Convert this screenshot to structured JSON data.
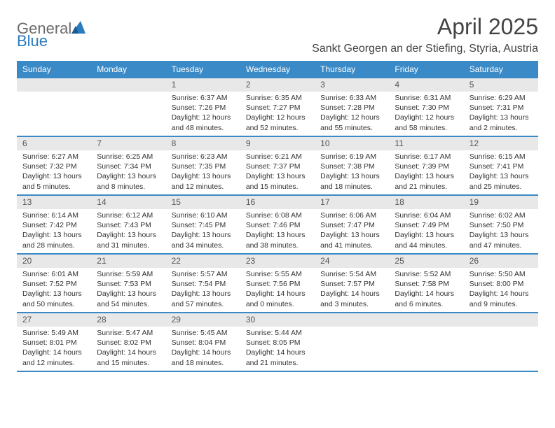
{
  "logo": {
    "text_general": "General",
    "text_blue": "Blue",
    "triangle_color": "#2b7bbf",
    "text_color_gray": "#6b6b6b"
  },
  "header": {
    "month_title": "April 2025",
    "location": "Sankt Georgen an der Stiefing, Styria, Austria"
  },
  "colors": {
    "header_bar": "#3a8ac7",
    "daynum_bg": "#e8e8e8",
    "row_divider": "#3a8ac7",
    "background": "#ffffff",
    "text": "#333333",
    "title_text": "#444444"
  },
  "weekdays": [
    "Sunday",
    "Monday",
    "Tuesday",
    "Wednesday",
    "Thursday",
    "Friday",
    "Saturday"
  ],
  "weeks": [
    [
      null,
      null,
      {
        "num": "1",
        "sunrise": "Sunrise: 6:37 AM",
        "sunset": "Sunset: 7:26 PM",
        "day1": "Daylight: 12 hours",
        "day2": "and 48 minutes."
      },
      {
        "num": "2",
        "sunrise": "Sunrise: 6:35 AM",
        "sunset": "Sunset: 7:27 PM",
        "day1": "Daylight: 12 hours",
        "day2": "and 52 minutes."
      },
      {
        "num": "3",
        "sunrise": "Sunrise: 6:33 AM",
        "sunset": "Sunset: 7:28 PM",
        "day1": "Daylight: 12 hours",
        "day2": "and 55 minutes."
      },
      {
        "num": "4",
        "sunrise": "Sunrise: 6:31 AM",
        "sunset": "Sunset: 7:30 PM",
        "day1": "Daylight: 12 hours",
        "day2": "and 58 minutes."
      },
      {
        "num": "5",
        "sunrise": "Sunrise: 6:29 AM",
        "sunset": "Sunset: 7:31 PM",
        "day1": "Daylight: 13 hours",
        "day2": "and 2 minutes."
      }
    ],
    [
      {
        "num": "6",
        "sunrise": "Sunrise: 6:27 AM",
        "sunset": "Sunset: 7:32 PM",
        "day1": "Daylight: 13 hours",
        "day2": "and 5 minutes."
      },
      {
        "num": "7",
        "sunrise": "Sunrise: 6:25 AM",
        "sunset": "Sunset: 7:34 PM",
        "day1": "Daylight: 13 hours",
        "day2": "and 8 minutes."
      },
      {
        "num": "8",
        "sunrise": "Sunrise: 6:23 AM",
        "sunset": "Sunset: 7:35 PM",
        "day1": "Daylight: 13 hours",
        "day2": "and 12 minutes."
      },
      {
        "num": "9",
        "sunrise": "Sunrise: 6:21 AM",
        "sunset": "Sunset: 7:37 PM",
        "day1": "Daylight: 13 hours",
        "day2": "and 15 minutes."
      },
      {
        "num": "10",
        "sunrise": "Sunrise: 6:19 AM",
        "sunset": "Sunset: 7:38 PM",
        "day1": "Daylight: 13 hours",
        "day2": "and 18 minutes."
      },
      {
        "num": "11",
        "sunrise": "Sunrise: 6:17 AM",
        "sunset": "Sunset: 7:39 PM",
        "day1": "Daylight: 13 hours",
        "day2": "and 21 minutes."
      },
      {
        "num": "12",
        "sunrise": "Sunrise: 6:15 AM",
        "sunset": "Sunset: 7:41 PM",
        "day1": "Daylight: 13 hours",
        "day2": "and 25 minutes."
      }
    ],
    [
      {
        "num": "13",
        "sunrise": "Sunrise: 6:14 AM",
        "sunset": "Sunset: 7:42 PM",
        "day1": "Daylight: 13 hours",
        "day2": "and 28 minutes."
      },
      {
        "num": "14",
        "sunrise": "Sunrise: 6:12 AM",
        "sunset": "Sunset: 7:43 PM",
        "day1": "Daylight: 13 hours",
        "day2": "and 31 minutes."
      },
      {
        "num": "15",
        "sunrise": "Sunrise: 6:10 AM",
        "sunset": "Sunset: 7:45 PM",
        "day1": "Daylight: 13 hours",
        "day2": "and 34 minutes."
      },
      {
        "num": "16",
        "sunrise": "Sunrise: 6:08 AM",
        "sunset": "Sunset: 7:46 PM",
        "day1": "Daylight: 13 hours",
        "day2": "and 38 minutes."
      },
      {
        "num": "17",
        "sunrise": "Sunrise: 6:06 AM",
        "sunset": "Sunset: 7:47 PM",
        "day1": "Daylight: 13 hours",
        "day2": "and 41 minutes."
      },
      {
        "num": "18",
        "sunrise": "Sunrise: 6:04 AM",
        "sunset": "Sunset: 7:49 PM",
        "day1": "Daylight: 13 hours",
        "day2": "and 44 minutes."
      },
      {
        "num": "19",
        "sunrise": "Sunrise: 6:02 AM",
        "sunset": "Sunset: 7:50 PM",
        "day1": "Daylight: 13 hours",
        "day2": "and 47 minutes."
      }
    ],
    [
      {
        "num": "20",
        "sunrise": "Sunrise: 6:01 AM",
        "sunset": "Sunset: 7:52 PM",
        "day1": "Daylight: 13 hours",
        "day2": "and 50 minutes."
      },
      {
        "num": "21",
        "sunrise": "Sunrise: 5:59 AM",
        "sunset": "Sunset: 7:53 PM",
        "day1": "Daylight: 13 hours",
        "day2": "and 54 minutes."
      },
      {
        "num": "22",
        "sunrise": "Sunrise: 5:57 AM",
        "sunset": "Sunset: 7:54 PM",
        "day1": "Daylight: 13 hours",
        "day2": "and 57 minutes."
      },
      {
        "num": "23",
        "sunrise": "Sunrise: 5:55 AM",
        "sunset": "Sunset: 7:56 PM",
        "day1": "Daylight: 14 hours",
        "day2": "and 0 minutes."
      },
      {
        "num": "24",
        "sunrise": "Sunrise: 5:54 AM",
        "sunset": "Sunset: 7:57 PM",
        "day1": "Daylight: 14 hours",
        "day2": "and 3 minutes."
      },
      {
        "num": "25",
        "sunrise": "Sunrise: 5:52 AM",
        "sunset": "Sunset: 7:58 PM",
        "day1": "Daylight: 14 hours",
        "day2": "and 6 minutes."
      },
      {
        "num": "26",
        "sunrise": "Sunrise: 5:50 AM",
        "sunset": "Sunset: 8:00 PM",
        "day1": "Daylight: 14 hours",
        "day2": "and 9 minutes."
      }
    ],
    [
      {
        "num": "27",
        "sunrise": "Sunrise: 5:49 AM",
        "sunset": "Sunset: 8:01 PM",
        "day1": "Daylight: 14 hours",
        "day2": "and 12 minutes."
      },
      {
        "num": "28",
        "sunrise": "Sunrise: 5:47 AM",
        "sunset": "Sunset: 8:02 PM",
        "day1": "Daylight: 14 hours",
        "day2": "and 15 minutes."
      },
      {
        "num": "29",
        "sunrise": "Sunrise: 5:45 AM",
        "sunset": "Sunset: 8:04 PM",
        "day1": "Daylight: 14 hours",
        "day2": "and 18 minutes."
      },
      {
        "num": "30",
        "sunrise": "Sunrise: 5:44 AM",
        "sunset": "Sunset: 8:05 PM",
        "day1": "Daylight: 14 hours",
        "day2": "and 21 minutes."
      },
      null,
      null,
      null
    ]
  ]
}
